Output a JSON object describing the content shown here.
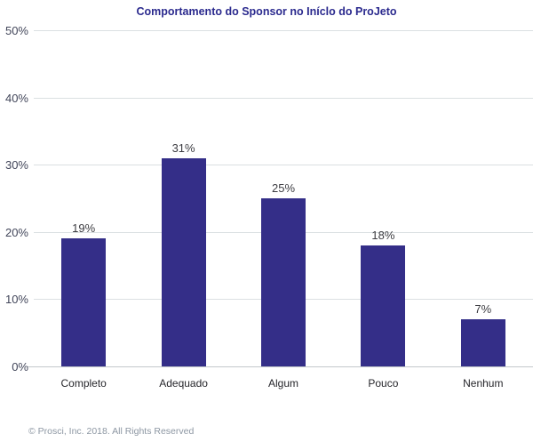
{
  "chart_data": {
    "type": "bar",
    "title": "Comportamento do Sponsor no Iníclo do ProJeto",
    "categories": [
      "Completo",
      "Adequado",
      "Algum",
      "Pouco",
      "Nenhum"
    ],
    "values": [
      19,
      31,
      25,
      18,
      7
    ],
    "value_labels": [
      "19%",
      "31%",
      "25%",
      "18%",
      "7%"
    ],
    "xlabel": "",
    "ylabel": "",
    "ylim": [
      0,
      50
    ],
    "yticks": [
      0,
      10,
      20,
      30,
      40,
      50
    ],
    "ytick_labels": [
      "0%",
      "10%",
      "20%",
      "30%",
      "40%",
      "50%"
    ],
    "grid": true,
    "legend_position": "none",
    "bar_color": "#342E88"
  },
  "colors": {
    "title_text": "#2B2A8E",
    "bar": "#342E88",
    "gridline": "#DBE0E2",
    "axis_line": "#C3C9CC",
    "ytick_text": "#42465A",
    "category_text": "#26262B",
    "value_label_text": "#3D3D42",
    "footer_text": "#8D97A3",
    "background": "#FFFFFF"
  },
  "footer": {
    "copyright": "© Prosci, Inc. 2018. All Rights Reserved"
  }
}
